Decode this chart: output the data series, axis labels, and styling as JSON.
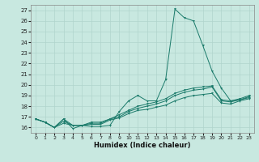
{
  "xlabel": "Humidex (Indice chaleur)",
  "bg_color": "#c8e8e0",
  "line_color": "#1a7a6a",
  "grid_color": "#b0d4cc",
  "xlim": [
    -0.5,
    23.5
  ],
  "ylim": [
    15.5,
    27.5
  ],
  "yticks": [
    16,
    17,
    18,
    19,
    20,
    21,
    22,
    23,
    24,
    25,
    26,
    27
  ],
  "xticks": [
    0,
    1,
    2,
    3,
    4,
    5,
    6,
    7,
    8,
    9,
    10,
    11,
    12,
    13,
    14,
    15,
    16,
    17,
    18,
    19,
    20,
    21,
    22,
    23
  ],
  "series": [
    [
      16.8,
      16.5,
      16.0,
      16.8,
      15.9,
      16.2,
      16.1,
      16.1,
      16.2,
      17.5,
      18.5,
      19.0,
      18.5,
      18.5,
      20.5,
      27.1,
      26.3,
      26.0,
      23.7,
      21.3,
      19.7,
      18.5,
      18.6,
      18.8
    ],
    [
      16.8,
      16.5,
      16.0,
      16.8,
      16.2,
      16.2,
      16.5,
      16.5,
      16.8,
      17.0,
      17.5,
      17.8,
      18.0,
      18.2,
      18.5,
      19.0,
      19.3,
      19.5,
      19.6,
      19.8,
      18.5,
      18.4,
      18.6,
      18.9
    ],
    [
      16.8,
      16.5,
      16.0,
      16.6,
      16.2,
      16.2,
      16.4,
      16.4,
      16.8,
      17.2,
      17.6,
      18.0,
      18.2,
      18.4,
      18.7,
      19.2,
      19.5,
      19.7,
      19.8,
      19.9,
      18.6,
      18.5,
      18.7,
      19.0
    ],
    [
      16.8,
      16.5,
      16.0,
      16.4,
      16.2,
      16.2,
      16.3,
      16.3,
      16.7,
      16.9,
      17.3,
      17.6,
      17.7,
      17.9,
      18.1,
      18.5,
      18.8,
      19.0,
      19.1,
      19.2,
      18.3,
      18.2,
      18.5,
      18.7
    ]
  ]
}
